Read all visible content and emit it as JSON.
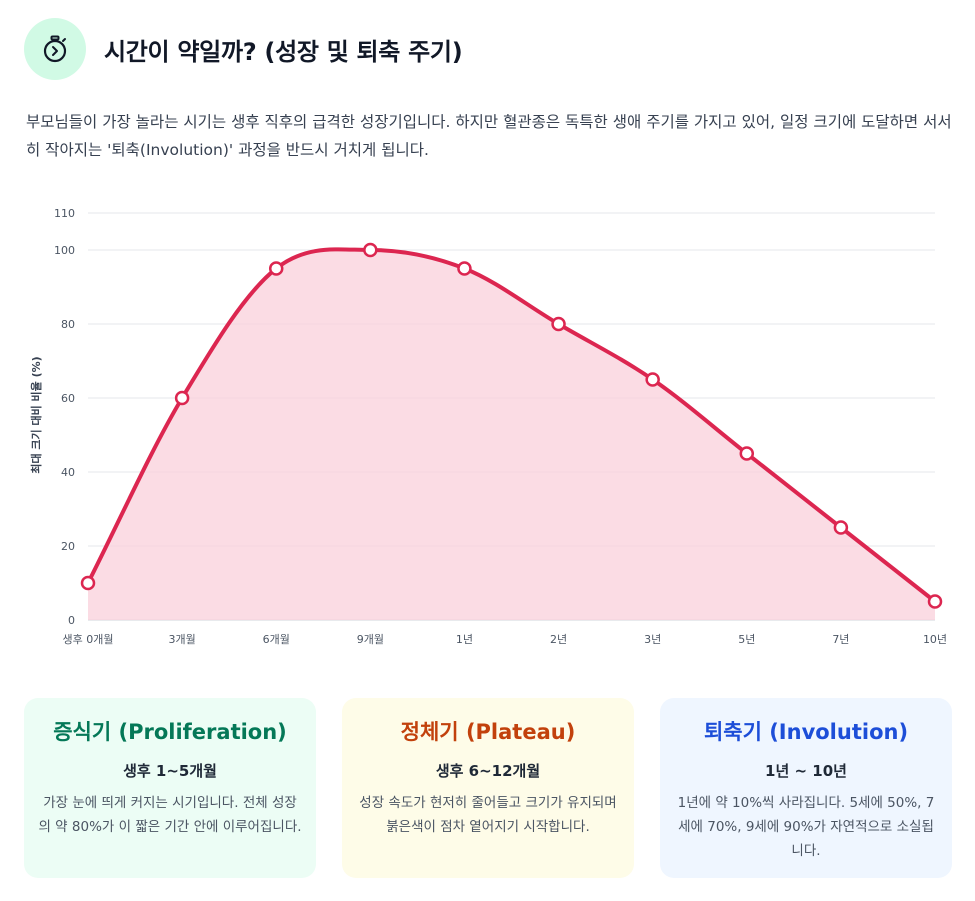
{
  "header": {
    "title": "시간이 약일까? (성장 및 퇴축 주기)",
    "icon": "stopwatch-icon"
  },
  "intro": "부모님들이 가장 놀라는 시기는 생후 직후의 급격한 성장기입니다. 하지만 혈관종은 독특한 생애 주기를 가지고 있어, 일정 크기에 도달하면 서서히 작아지는 '퇴축(Involution)' 과정을 반드시 거치게 됩니다.",
  "chart_data": {
    "type": "area",
    "title": "",
    "xlabel": "",
    "ylabel": "최대 크기 대비 비율 (%)",
    "categories": [
      "생후 0개월",
      "3개월",
      "6개월",
      "9개월",
      "1년",
      "2년",
      "3년",
      "5년",
      "7년",
      "10년"
    ],
    "series": [
      {
        "values": [
          10,
          60,
          95,
          100,
          95,
          80,
          65,
          45,
          25,
          5
        ]
      }
    ],
    "ylim": [
      0,
      110
    ],
    "yticks": [
      0,
      20,
      40,
      60,
      80,
      100,
      110
    ],
    "grid": true,
    "line_color": "#dc2650",
    "fill_color": "#f9d0db"
  },
  "cards": [
    {
      "title": "증식기 (Proliferation)",
      "subtitle": "생후 1~5개월",
      "text": "가장 눈에 띄게 커지는 시기입니다. 전체 성장의 약 80%가 이 짧은 기간 안에 이루어집니다."
    },
    {
      "title": "정체기 (Plateau)",
      "subtitle": "생후 6~12개월",
      "text": "성장 속도가 현저히 줄어들고 크기가 유지되며 붉은색이 점차 옅어지기 시작합니다."
    },
    {
      "title": "퇴축기 (Involution)",
      "subtitle": "1년 ~ 10년",
      "text": "1년에 약 10%씩 사라집니다. 5세에 50%, 7세에 70%, 9세에 90%가 자연적으로 소실됩니다."
    }
  ]
}
